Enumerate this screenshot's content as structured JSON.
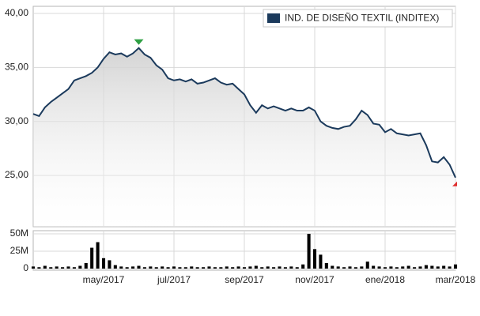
{
  "chart_data": [
    {
      "type": "line",
      "series": [
        {
          "name": "IND. DE DISEÑO TEXTIL (INDITEX)",
          "color": "#1b3a5c",
          "values": [
            30.7,
            30.5,
            31.3,
            31.8,
            32.2,
            32.6,
            33.0,
            33.8,
            34.0,
            34.2,
            34.5,
            35.0,
            35.8,
            36.4,
            36.2,
            36.3,
            36.0,
            36.3,
            36.8,
            36.2,
            35.9,
            35.2,
            34.8,
            34.0,
            33.8,
            33.9,
            33.7,
            33.9,
            33.5,
            33.6,
            33.8,
            34.0,
            33.6,
            33.4,
            33.5,
            33.0,
            32.5,
            31.5,
            30.8,
            31.5,
            31.2,
            31.4,
            31.2,
            31.0,
            31.2,
            31.0,
            31.0,
            31.3,
            31.0,
            30.0,
            29.6,
            29.4,
            29.3,
            29.5,
            29.6,
            30.2,
            31.0,
            30.6,
            29.8,
            29.7,
            29.0,
            29.3,
            28.9,
            28.8,
            28.7,
            28.8,
            28.9,
            27.8,
            26.3,
            26.2,
            26.7,
            26.0,
            24.8
          ]
        }
      ],
      "ylim": [
        20.25,
        40.66
      ],
      "yticks": [
        {
          "value": 25,
          "label": "25,00"
        },
        {
          "value": 30,
          "label": "30,00"
        },
        {
          "value": 35,
          "label": "35,00"
        },
        {
          "value": 40,
          "label": "40,00"
        }
      ],
      "grid": true,
      "legend": "top-right"
    },
    {
      "type": "bar",
      "color": "#000000",
      "categories": [
        null,
        null,
        null,
        null,
        null,
        null,
        null,
        null,
        null,
        null,
        null,
        null,
        "may/2017",
        null,
        null,
        null,
        null,
        null,
        null,
        null,
        null,
        null,
        null,
        null,
        "jul/2017",
        null,
        null,
        null,
        null,
        null,
        null,
        null,
        null,
        null,
        null,
        null,
        "sep/2017",
        null,
        null,
        null,
        null,
        null,
        null,
        null,
        null,
        null,
        null,
        null,
        "nov/2017",
        null,
        null,
        null,
        null,
        null,
        null,
        null,
        null,
        null,
        null,
        null,
        "ene/2018",
        null,
        null,
        null,
        null,
        null,
        null,
        null,
        null,
        null,
        null,
        null,
        "mar/2018"
      ],
      "values": [
        3000000,
        2000000,
        4000000,
        2000000,
        3000000,
        2000000,
        3000000,
        2000000,
        4000000,
        8000000,
        30000000,
        38000000,
        15000000,
        12000000,
        5000000,
        3000000,
        2000000,
        3000000,
        4000000,
        2000000,
        3000000,
        2000000,
        3000000,
        2000000,
        3000000,
        2000000,
        2000000,
        3000000,
        2000000,
        2000000,
        3000000,
        2000000,
        2000000,
        3000000,
        2000000,
        3000000,
        2000000,
        3000000,
        4000000,
        2000000,
        3000000,
        2000000,
        3000000,
        2000000,
        3000000,
        2000000,
        6000000,
        50000000,
        28000000,
        20000000,
        8000000,
        4000000,
        3000000,
        2000000,
        3000000,
        2000000,
        3000000,
        10000000,
        4000000,
        3000000,
        2000000,
        3000000,
        2000000,
        3000000,
        4000000,
        2000000,
        3000000,
        5000000,
        4000000,
        3000000,
        4000000,
        3000000,
        6000000
      ],
      "ylim": [
        0,
        54500000
      ],
      "yticks": [
        {
          "value": 0,
          "label": "0"
        },
        {
          "value": 25000000,
          "label": "25M"
        },
        {
          "value": 50000000,
          "label": "50M"
        }
      ],
      "grid": true
    }
  ]
}
